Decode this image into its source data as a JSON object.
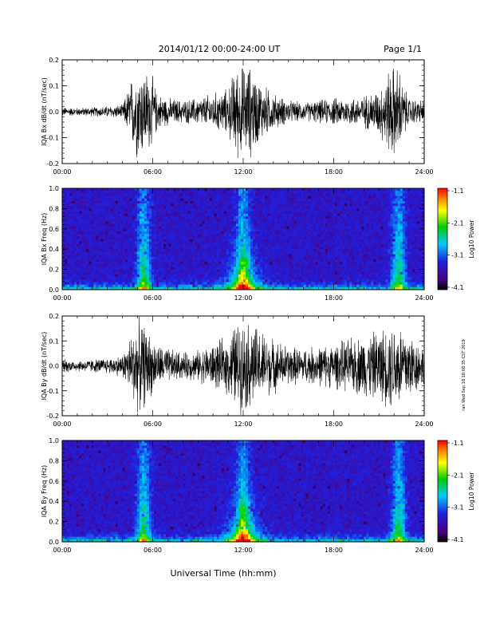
{
  "header": {
    "title": "2014/01/12  00:00-24:00 UT",
    "page": "Page 1/1"
  },
  "side_stamp": "ran Wed Sep 18 18:08:35 CST 2019",
  "footer": {
    "xlabel": "Universal Time (hh:mm)"
  },
  "x_ticks": [
    "00:00",
    "06:00",
    "12:00",
    "18:00",
    "24:00"
  ],
  "chart_data": [
    {
      "type": "line",
      "ylabel": "IQA Bx dB/dt (nT/sec)",
      "xlim": [
        "00:00",
        "24:00"
      ],
      "ylim": [
        -0.2,
        0.2
      ],
      "yticks": [
        "0.2",
        "0.1",
        "0.0",
        "-0.1",
        "-0.2"
      ],
      "envelope": {
        "hours": [
          0,
          1,
          2,
          3,
          4,
          4.9,
          5.2,
          5.6,
          6.0,
          6.3,
          7,
          8,
          9,
          10,
          11,
          11.5,
          12,
          12.5,
          13,
          14,
          15,
          16,
          17,
          18,
          19,
          20,
          21,
          21.8,
          22.1,
          22.3,
          22.6,
          23,
          24
        ],
        "amplitude": [
          0.02,
          0.018,
          0.02,
          0.025,
          0.03,
          0.2,
          0.2,
          0.18,
          0.15,
          0.08,
          0.06,
          0.05,
          0.06,
          0.08,
          0.1,
          0.2,
          0.2,
          0.2,
          0.14,
          0.08,
          0.05,
          0.04,
          0.05,
          0.06,
          0.06,
          0.07,
          0.1,
          0.2,
          0.2,
          0.2,
          0.12,
          0.06,
          0.05
        ]
      }
    },
    {
      "type": "heatmap",
      "ylabel": "IQA Bx Freq (Hz)",
      "xlim": [
        "00:00",
        "24:00"
      ],
      "ylim": [
        0.0,
        1.0
      ],
      "yticks": [
        "1.0",
        "0.8",
        "0.6",
        "0.4",
        "0.2",
        "0.0"
      ],
      "colorbar": {
        "label": "Log10 Power",
        "ticks": [
          "-1.1",
          "-2.1",
          "-3.1",
          "-4.1"
        ],
        "range": [
          -4.1,
          -1.1
        ]
      },
      "hotspots_hours": [
        5.4,
        12.0,
        22.3
      ]
    },
    {
      "type": "line",
      "ylabel": "IQA By dB/dt (nT/sec)",
      "xlim": [
        "00:00",
        "24:00"
      ],
      "ylim": [
        -0.2,
        0.2
      ],
      "yticks": [
        "0.2",
        "0.1",
        "0.0",
        "-0.1",
        "-0.2"
      ],
      "envelope": {
        "hours": [
          0,
          1,
          2,
          3,
          4,
          4.9,
          5.3,
          5.7,
          6.2,
          7,
          8,
          9,
          10,
          11,
          11.5,
          12,
          12.5,
          13,
          14,
          15,
          16,
          17,
          18,
          19,
          20,
          21,
          22,
          22.4,
          23,
          24
        ],
        "amplitude": [
          0.03,
          0.025,
          0.03,
          0.035,
          0.05,
          0.2,
          0.2,
          0.16,
          0.1,
          0.08,
          0.06,
          0.07,
          0.1,
          0.13,
          0.2,
          0.2,
          0.2,
          0.17,
          0.12,
          0.09,
          0.08,
          0.09,
          0.1,
          0.12,
          0.14,
          0.16,
          0.2,
          0.2,
          0.16,
          0.08
        ]
      }
    },
    {
      "type": "heatmap",
      "ylabel": "IQA By Freq (Hz)",
      "xlim": [
        "00:00",
        "24:00"
      ],
      "ylim": [
        0.0,
        1.0
      ],
      "yticks": [
        "1.0",
        "0.8",
        "0.6",
        "0.4",
        "0.2",
        "0.0"
      ],
      "colorbar": {
        "label": "Log10 Power",
        "ticks": [
          "-1.1",
          "-2.1",
          "-3.1",
          "-4.1"
        ],
        "range": [
          -4.1,
          -1.1
        ]
      },
      "hotspots_hours": [
        5.4,
        12.0,
        22.3
      ]
    }
  ]
}
